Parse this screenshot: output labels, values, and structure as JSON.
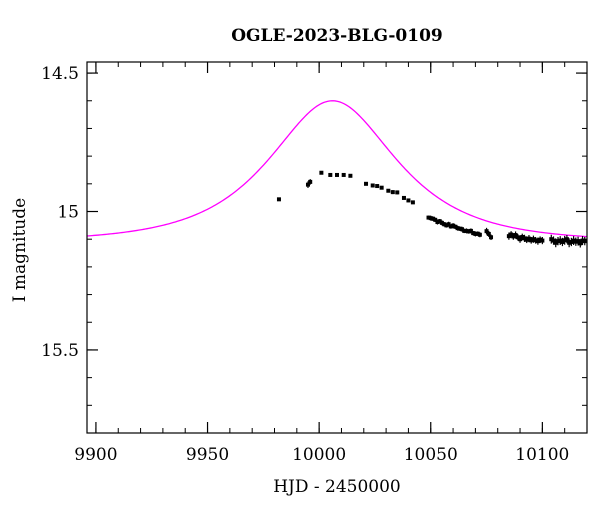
{
  "chart_data": {
    "type": "scatter",
    "title": "OGLE-2023-BLG-0109",
    "xlabel": "HJD - 2450000",
    "ylabel": "I magnitude",
    "xlim": [
      9896,
      10120
    ],
    "ylim": [
      15.8,
      14.46
    ],
    "y_inverted": true,
    "x_ticks": [
      "9900",
      "9950",
      "10000",
      "10050",
      "10100"
    ],
    "y_ticks": [
      "14.5",
      "15",
      "15.5"
    ],
    "x_tick_values": [
      9900,
      9950,
      10000,
      10050,
      10100
    ],
    "y_tick_values": [
      14.5,
      15,
      15.5
    ],
    "grid": false,
    "colors": {
      "points": "#000000",
      "model": "#ff00ff"
    },
    "series": [
      {
        "kind": "points",
        "x": [
          9982,
          9995,
          9996,
          10001,
          10005,
          10008,
          10011,
          10014,
          10021,
          10024,
          10026,
          10028,
          10031,
          10033,
          10035,
          10038,
          10040,
          10042,
          10049,
          10050,
          10051,
          10052,
          10053,
          10054,
          10055,
          10056,
          10057,
          10058,
          10059,
          10060,
          10061,
          10062,
          10063,
          10064,
          10065,
          10066,
          10067,
          10068,
          10069,
          10070,
          10071,
          10072,
          10075,
          10076,
          10077,
          10085,
          10086,
          10087,
          10088,
          10089,
          10090,
          10091,
          10092,
          10093,
          10094,
          10095,
          10096,
          10097,
          10098,
          10099,
          10100,
          10104,
          10105,
          10106,
          10107,
          10108,
          10109,
          10110,
          10111,
          10112,
          10113,
          10114,
          10115,
          10116,
          10117,
          10118,
          10119
        ],
        "y": [
          14.956,
          14.903,
          14.893,
          14.86,
          14.868,
          14.868,
          14.868,
          14.871,
          14.9,
          14.906,
          14.908,
          14.914,
          14.925,
          14.93,
          14.931,
          14.951,
          14.96,
          14.967,
          15.022,
          15.024,
          15.026,
          15.03,
          15.038,
          15.035,
          15.041,
          15.046,
          15.05,
          15.046,
          15.054,
          15.051,
          15.055,
          15.06,
          15.062,
          15.064,
          15.07,
          15.07,
          15.072,
          15.07,
          15.078,
          15.081,
          15.08,
          15.084,
          15.071,
          15.081,
          15.093,
          15.089,
          15.083,
          15.09,
          15.085,
          15.093,
          15.1,
          15.092,
          15.097,
          15.102,
          15.098,
          15.104,
          15.1,
          15.104,
          15.107,
          15.102,
          15.105,
          15.1,
          15.105,
          15.113,
          15.107,
          15.105,
          15.11,
          15.104,
          15.1,
          15.113,
          15.11,
          15.105,
          15.109,
          15.107,
          15.115,
          15.105,
          15.107
        ],
        "yerr": [
          0.005,
          0.012,
          0.01,
          0.006,
          0.005,
          0.005,
          0.005,
          0.006,
          0.006,
          0.007,
          0.005,
          0.006,
          0.006,
          0.007,
          0.007,
          0.006,
          0.006,
          0.006,
          0.007,
          0.009,
          0.008,
          0.008,
          0.009,
          0.008,
          0.009,
          0.008,
          0.008,
          0.009,
          0.008,
          0.009,
          0.008,
          0.009,
          0.008,
          0.009,
          0.008,
          0.009,
          0.008,
          0.009,
          0.008,
          0.009,
          0.008,
          0.009,
          0.012,
          0.011,
          0.01,
          0.013,
          0.012,
          0.012,
          0.013,
          0.012,
          0.013,
          0.012,
          0.013,
          0.012,
          0.013,
          0.012,
          0.013,
          0.012,
          0.013,
          0.012,
          0.013,
          0.016,
          0.015,
          0.016,
          0.015,
          0.016,
          0.015,
          0.016,
          0.015,
          0.016,
          0.015,
          0.016,
          0.015,
          0.016,
          0.015,
          0.016,
          0.015
        ]
      },
      {
        "kind": "model",
        "model_type": "point-lens",
        "model_params": {
          "t0": 10006.0,
          "u0": 0.75,
          "tE": 40.0,
          "baseline": 15.11
        },
        "x_range": [
          9896,
          10120
        ]
      }
    ]
  }
}
